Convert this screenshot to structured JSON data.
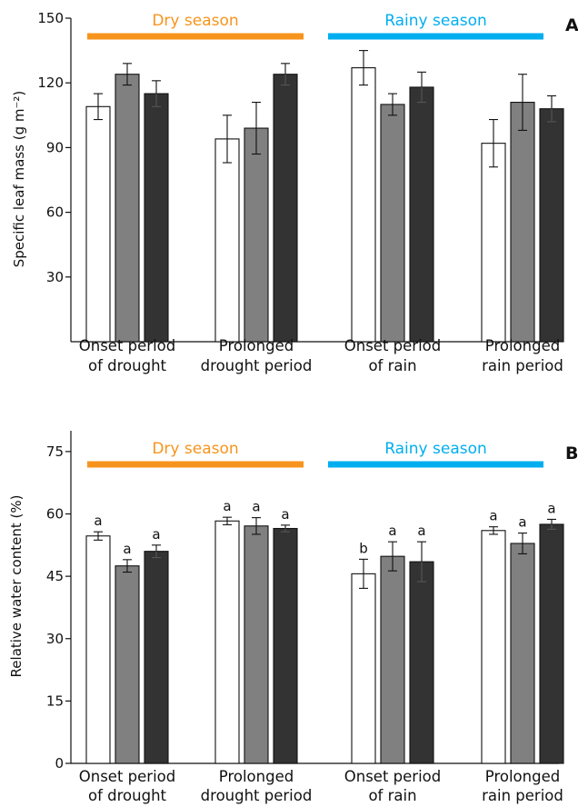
{
  "colors": {
    "dry": "#f7941d",
    "rainy": "#00aeef",
    "treatment_fills": [
      "#ffffff",
      "#808080",
      "#333333"
    ],
    "stroke": "#111111"
  },
  "chart_data": [
    {
      "type": "bar",
      "panel": "A",
      "ylabel": "Specific leaf mass (g m⁻²)",
      "ylim": [
        0,
        150
      ],
      "yticks": [
        30,
        60,
        90,
        120,
        150
      ],
      "seasons": [
        {
          "label": "Dry season",
          "color": "#f7941d"
        },
        {
          "label": "Rainy season",
          "color": "#00aeef"
        }
      ],
      "categories": [
        [
          "Onset period",
          "of drought"
        ],
        [
          "Prolonged",
          "drought period"
        ],
        [
          "Onset period",
          "of rain"
        ],
        [
          "Prolonged",
          "rain period"
        ]
      ],
      "series": [
        {
          "fill": "white",
          "values": [
            109,
            94,
            127,
            92
          ],
          "errors": [
            6,
            11,
            8,
            11
          ]
        },
        {
          "fill": "gray",
          "values": [
            124,
            99,
            110,
            111
          ],
          "errors": [
            5,
            12,
            5,
            13
          ]
        },
        {
          "fill": "black",
          "values": [
            115,
            124,
            118,
            108
          ],
          "errors": [
            6,
            5,
            7,
            6
          ]
        }
      ],
      "grid": false
    },
    {
      "type": "bar",
      "panel": "B",
      "ylabel": "Relative water content (%)",
      "ylim": [
        0,
        80
      ],
      "yticks": [
        0,
        15,
        30,
        45,
        60,
        75
      ],
      "seasons": [
        {
          "label": "Dry season",
          "color": "#f7941d"
        },
        {
          "label": "Rainy season",
          "color": "#00aeef"
        }
      ],
      "categories": [
        [
          "Onset period",
          "of drought"
        ],
        [
          "Prolonged",
          "drought period"
        ],
        [
          "Onset period",
          "of rain"
        ],
        [
          "Prolonged",
          "rain period"
        ]
      ],
      "series": [
        {
          "fill": "white",
          "values": [
            54.7,
            58.3,
            45.6,
            56.0
          ],
          "errors": [
            1.0,
            0.9,
            3.5,
            0.9
          ],
          "letters": [
            "a",
            "a",
            "b",
            "a"
          ]
        },
        {
          "fill": "gray",
          "values": [
            47.5,
            57.1,
            49.8,
            52.9
          ],
          "errors": [
            1.5,
            2.0,
            3.5,
            2.5
          ],
          "letters": [
            "a",
            "a",
            "a",
            "a"
          ]
        },
        {
          "fill": "black",
          "values": [
            51.0,
            56.5,
            48.5,
            57.5
          ],
          "errors": [
            1.5,
            0.8,
            4.8,
            1.2
          ],
          "letters": [
            "a",
            "a",
            "a",
            "a"
          ]
        }
      ],
      "grid": false
    }
  ]
}
